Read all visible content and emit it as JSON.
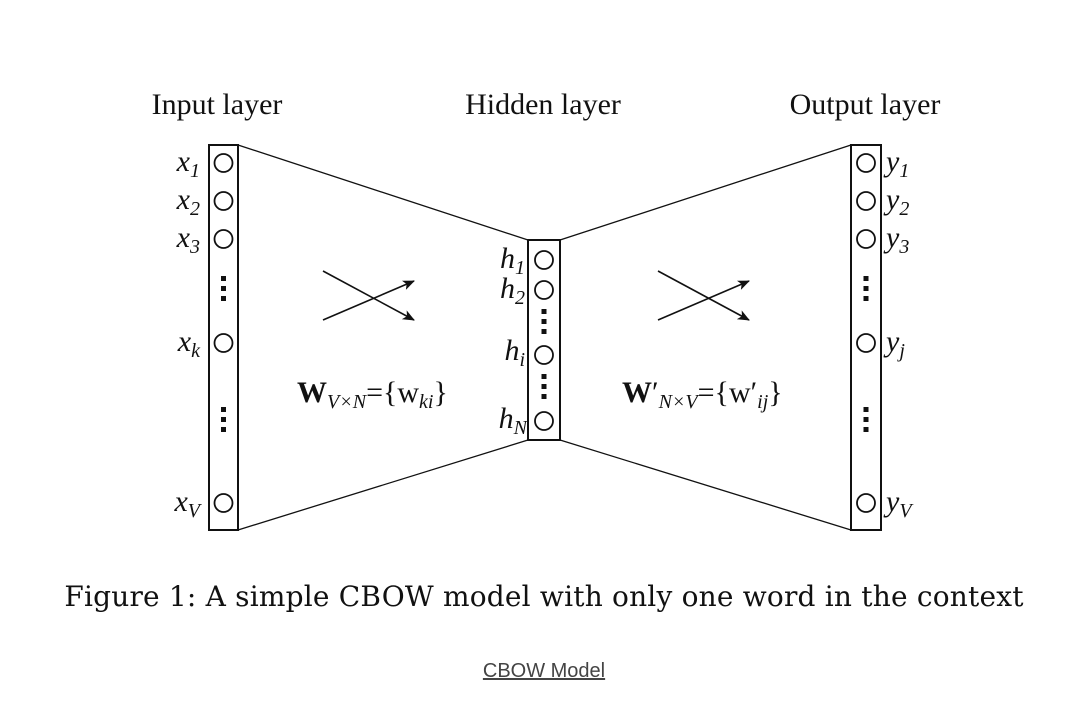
{
  "layers": {
    "input": {
      "title": "Input layer",
      "nodes": [
        {
          "base": "x",
          "sub": "1"
        },
        {
          "base": "x",
          "sub": "2"
        },
        {
          "base": "x",
          "sub": "3"
        },
        {
          "base": "x",
          "sub": "k"
        },
        {
          "base": "x",
          "sub": "V"
        }
      ]
    },
    "hidden": {
      "title": "Hidden layer",
      "nodes": [
        {
          "base": "h",
          "sub": "1"
        },
        {
          "base": "h",
          "sub": "2"
        },
        {
          "base": "h",
          "sub": "i"
        },
        {
          "base": "h",
          "sub": "N"
        }
      ]
    },
    "output": {
      "title": "Output layer",
      "nodes": [
        {
          "base": "y",
          "sub": "1"
        },
        {
          "base": "y",
          "sub": "2"
        },
        {
          "base": "y",
          "sub": "3"
        },
        {
          "base": "y",
          "sub": "j"
        },
        {
          "base": "y",
          "sub": "V"
        }
      ]
    }
  },
  "weights": {
    "input_hidden": {
      "symbol": "W",
      "dims": "V×N",
      "rhs_open": "={w",
      "rhs_sub": "ki",
      "rhs_close": "}"
    },
    "hidden_output": {
      "symbol": "W",
      "prime": "′",
      "dims": "N×V",
      "rhs_open": "={w′",
      "rhs_sub": "ij",
      "rhs_close": "}"
    }
  },
  "caption": "Figure 1: A simple CBOW model with only one word in the context",
  "link_text": "CBOW Model"
}
